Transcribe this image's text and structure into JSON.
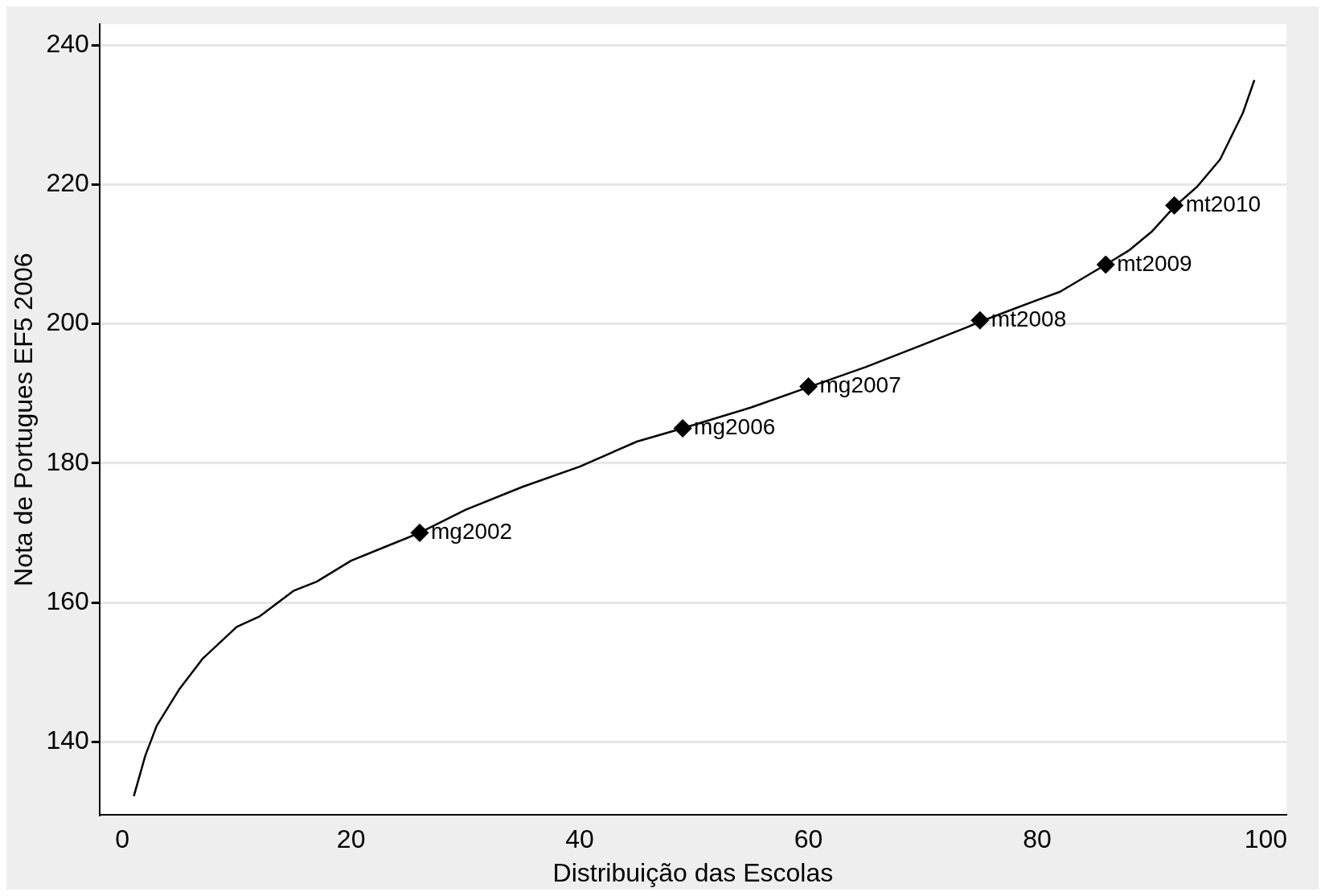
{
  "chart_data": {
    "type": "line",
    "xlabel": "Distribuição das Escolas",
    "ylabel": "Nota de Portugues EF5 2006",
    "xlim": [
      -2,
      101.8
    ],
    "ylim": [
      129.5,
      243
    ],
    "xticks": [
      0,
      20,
      40,
      60,
      80,
      100
    ],
    "yticks": [
      140,
      160,
      180,
      200,
      220,
      240
    ],
    "grid": "y",
    "legend": false,
    "series": [
      {
        "color": "#000000",
        "marker": "none",
        "x": [
          1,
          2,
          3,
          5,
          7,
          10,
          12,
          15,
          17,
          20,
          23,
          26,
          30,
          35,
          40,
          45,
          49,
          52,
          55,
          60,
          65,
          70,
          74,
          75,
          80,
          82,
          86,
          88,
          90,
          92,
          94,
          96,
          98,
          99
        ],
        "values": [
          132.2,
          138,
          142.3,
          147.6,
          151.9,
          156.5,
          158,
          161.7,
          163,
          166,
          168,
          170,
          173.3,
          176.6,
          179.5,
          183.1,
          185,
          186.5,
          188,
          190.9,
          193.8,
          197,
          199.6,
          200.3,
          203.4,
          204.6,
          208.5,
          210.5,
          213.2,
          216.8,
          219.7,
          223.6,
          230.3,
          235
        ]
      },
      {
        "type": "scatter",
        "color": "#000000",
        "marker": "diamond",
        "x": [
          26,
          49,
          60,
          75,
          86,
          92
        ],
        "values": [
          170,
          185,
          191,
          200.5,
          208.5,
          217
        ]
      }
    ],
    "annotations": [
      {
        "text": "mg2002",
        "x": 26,
        "y": 170
      },
      {
        "text": "mg2006",
        "x": 49,
        "y": 185
      },
      {
        "text": "mg2007",
        "x": 60,
        "y": 191
      },
      {
        "text": "mt2008",
        "x": 75,
        "y": 200.5
      },
      {
        "text": "mt2009",
        "x": 86,
        "y": 208.5
      },
      {
        "text": "mt2010",
        "x": 92,
        "y": 217
      }
    ]
  }
}
